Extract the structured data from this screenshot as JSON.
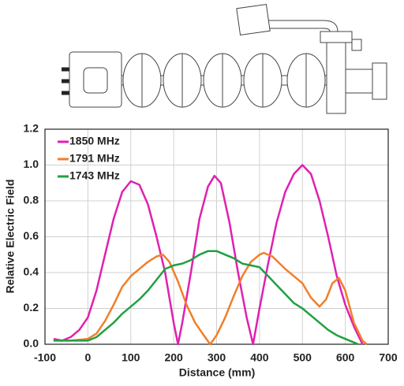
{
  "chart_data": {
    "type": "line",
    "xlabel": "Distance (mm)",
    "ylabel": "Relative Electric Field",
    "xlim": [
      -100,
      700
    ],
    "xticks": [
      -100,
      0,
      100,
      200,
      300,
      400,
      500,
      600,
      700
    ],
    "ylim": [
      0,
      1.2
    ],
    "yticks": [
      {
        "value": 0,
        "label": "0.0"
      },
      0.2,
      0.4,
      0.6,
      0.8,
      {
        "value": 1,
        "label": "1.0"
      },
      1.2
    ],
    "grid": true,
    "legend": "upper left",
    "series": [
      {
        "name": "1850 MHz",
        "color": "#e020b0",
        "x": [
          -80,
          -60,
          -40,
          -20,
          0,
          20,
          40,
          60,
          80,
          100,
          120,
          140,
          160,
          180,
          200,
          210,
          220,
          240,
          260,
          280,
          295,
          310,
          330,
          350,
          370,
          385,
          400,
          420,
          440,
          460,
          480,
          500,
          520,
          540,
          560,
          580,
          600,
          620,
          640
        ],
        "values": [
          0.03,
          0.02,
          0.04,
          0.08,
          0.15,
          0.3,
          0.5,
          0.7,
          0.85,
          0.91,
          0.89,
          0.78,
          0.6,
          0.4,
          0.12,
          0.0,
          0.12,
          0.4,
          0.7,
          0.88,
          0.94,
          0.9,
          0.68,
          0.4,
          0.15,
          0.0,
          0.2,
          0.45,
          0.68,
          0.85,
          0.95,
          1.0,
          0.95,
          0.8,
          0.6,
          0.38,
          0.22,
          0.1,
          0.0
        ]
      },
      {
        "name": "1791 MHz",
        "color": "#f07f2a",
        "x": [
          -80,
          -40,
          0,
          20,
          40,
          60,
          80,
          100,
          120,
          140,
          160,
          175,
          190,
          210,
          230,
          250,
          270,
          285,
          300,
          320,
          340,
          360,
          380,
          400,
          410,
          430,
          460,
          500,
          520,
          540,
          555,
          570,
          585,
          600,
          620,
          640,
          650
        ],
        "values": [
          0.02,
          0.02,
          0.03,
          0.06,
          0.13,
          0.22,
          0.32,
          0.38,
          0.42,
          0.46,
          0.49,
          0.5,
          0.46,
          0.35,
          0.22,
          0.12,
          0.05,
          0.0,
          0.05,
          0.15,
          0.27,
          0.38,
          0.46,
          0.5,
          0.51,
          0.49,
          0.42,
          0.34,
          0.26,
          0.21,
          0.25,
          0.34,
          0.37,
          0.3,
          0.12,
          0.02,
          0.0
        ]
      },
      {
        "name": "1743 MHz",
        "color": "#20a040",
        "x": [
          -80,
          -40,
          0,
          20,
          40,
          60,
          80,
          100,
          120,
          140,
          160,
          180,
          200,
          220,
          240,
          260,
          280,
          300,
          320,
          340,
          360,
          380,
          400,
          420,
          440,
          460,
          480,
          500,
          520,
          540,
          560,
          580,
          600,
          620,
          630
        ],
        "values": [
          0.02,
          0.02,
          0.02,
          0.04,
          0.08,
          0.12,
          0.17,
          0.21,
          0.25,
          0.3,
          0.36,
          0.42,
          0.44,
          0.45,
          0.47,
          0.5,
          0.52,
          0.52,
          0.5,
          0.48,
          0.45,
          0.44,
          0.43,
          0.38,
          0.33,
          0.28,
          0.23,
          0.2,
          0.16,
          0.12,
          0.08,
          0.05,
          0.03,
          0.01,
          0.0
        ]
      }
    ]
  }
}
